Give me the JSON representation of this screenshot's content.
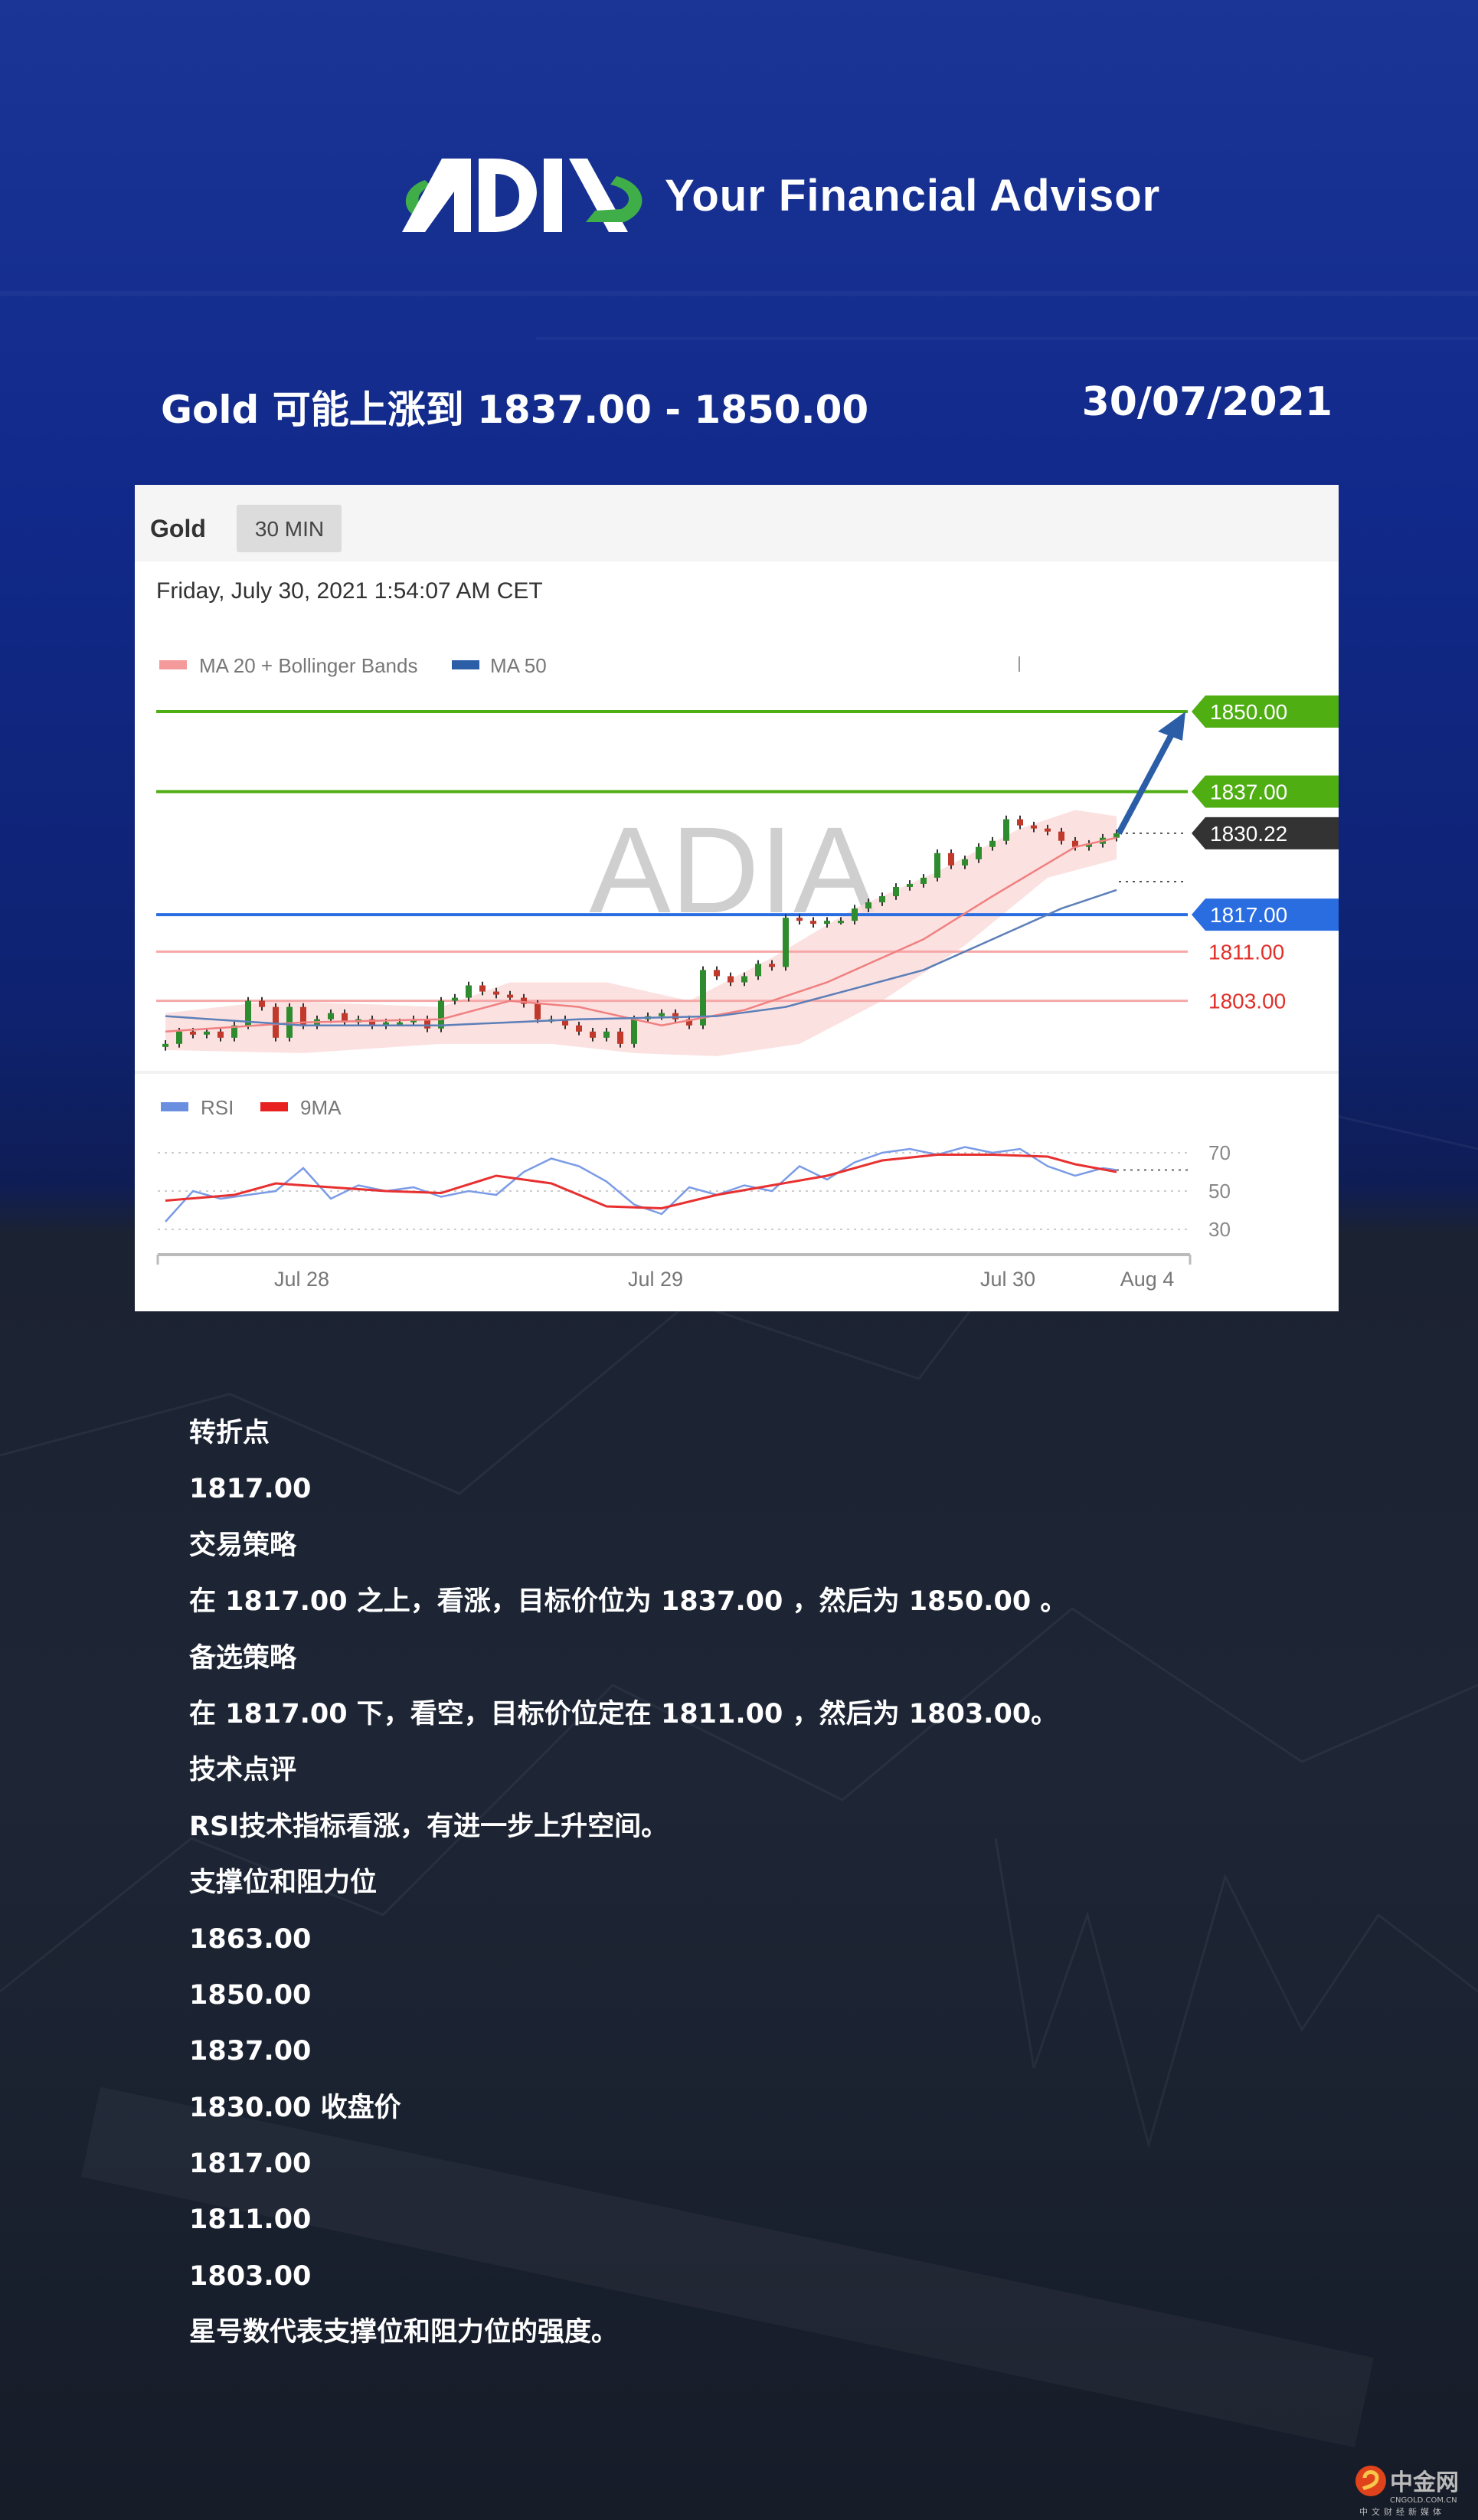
{
  "header": {
    "logo_text": "ADIA",
    "tagline": "Your Financial Advisor",
    "title": "Gold 可能上涨到 1837.00 - 1850.00",
    "date": "30/07/2021"
  },
  "chart_data": {
    "type": "candlestick",
    "symbol": "Gold",
    "timeframe": "30 MIN",
    "timestamp": "Friday, July 30, 2021 1:54:07 AM CET",
    "watermark": "ADIA",
    "legend": [
      {
        "name": "MA 20 + Bollinger Bands",
        "color": "#f08080"
      },
      {
        "name": "MA 50",
        "color": "#2b5ea7"
      }
    ],
    "ylim": [
      1793,
      1852
    ],
    "closes": [
      1796,
      1798,
      1797.5,
      1798,
      1797,
      1799,
      1803,
      1802,
      1797,
      1802,
      1799,
      1800,
      1801,
      1799.5,
      1800,
      1799,
      1799.5,
      1799.5,
      1800,
      1798.5,
      1803,
      1803.5,
      1805.5,
      1804.5,
      1804,
      1803.5,
      1802.5,
      1800,
      1800,
      1799,
      1798,
      1797,
      1798,
      1796,
      1800,
      1800.5,
      1801,
      1800,
      1799,
      1808,
      1807,
      1806,
      1807,
      1809,
      1808.5,
      1816.5,
      1816,
      1815.5,
      1816,
      1816,
      1818,
      1819,
      1820,
      1821.5,
      1822,
      1823,
      1827,
      1825,
      1826,
      1828,
      1829,
      1832.5,
      1831.5,
      1831,
      1830.5,
      1829,
      1828,
      1828.5,
      1829.5,
      1830.22
    ],
    "ma20": [
      [
        0,
        1798
      ],
      [
        10,
        1799.5
      ],
      [
        20,
        1800
      ],
      [
        25,
        1803
      ],
      [
        30,
        1802
      ],
      [
        36,
        1799
      ],
      [
        42,
        1801.5
      ],
      [
        48,
        1806
      ],
      [
        55,
        1813
      ],
      [
        60,
        1820
      ],
      [
        66,
        1828
      ],
      [
        69,
        1829.5
      ]
    ],
    "ma50": [
      [
        0,
        1800.5
      ],
      [
        10,
        1799
      ],
      [
        20,
        1799
      ],
      [
        30,
        1800
      ],
      [
        40,
        1800.5
      ],
      [
        45,
        1802
      ],
      [
        50,
        1805
      ],
      [
        55,
        1808
      ],
      [
        60,
        1813
      ],
      [
        65,
        1818
      ],
      [
        69,
        1821
      ]
    ],
    "bb_upper": [
      [
        0,
        1801
      ],
      [
        8,
        1803
      ],
      [
        20,
        1802
      ],
      [
        25,
        1806
      ],
      [
        32,
        1806
      ],
      [
        38,
        1803
      ],
      [
        44,
        1810
      ],
      [
        50,
        1818
      ],
      [
        56,
        1824
      ],
      [
        62,
        1831
      ],
      [
        66,
        1834
      ],
      [
        69,
        1833
      ]
    ],
    "bb_lower": [
      [
        0,
        1795
      ],
      [
        10,
        1794.5
      ],
      [
        20,
        1796
      ],
      [
        28,
        1796
      ],
      [
        34,
        1794.5
      ],
      [
        40,
        1794
      ],
      [
        46,
        1796
      ],
      [
        52,
        1803
      ],
      [
        58,
        1812
      ],
      [
        64,
        1823
      ],
      [
        69,
        1826
      ]
    ],
    "levels": [
      {
        "value": 1850.0,
        "label": "1850.00",
        "kind": "resistance",
        "color": "#4fae12"
      },
      {
        "value": 1837.0,
        "label": "1837.00",
        "kind": "resistance",
        "color": "#4fae12"
      },
      {
        "value": 1830.22,
        "label": "1830.22",
        "kind": "current",
        "color": "#333333"
      },
      {
        "value": 1817.0,
        "label": "1817.00",
        "kind": "pivot",
        "color": "#2a6de0"
      },
      {
        "value": 1811.0,
        "label": "1811.00",
        "kind": "support",
        "color": "#e0302a"
      },
      {
        "value": 1803.0,
        "label": "1803.00",
        "kind": "support",
        "color": "#e0302a"
      }
    ],
    "rsi_legend": [
      {
        "name": "RSI",
        "color": "#6b8fe0"
      },
      {
        "name": "9MA",
        "color": "#e82020"
      }
    ],
    "rsi_ticks": [
      "70",
      "50",
      "30"
    ],
    "rsi": [
      [
        0,
        34
      ],
      [
        2,
        50
      ],
      [
        4,
        46
      ],
      [
        6,
        48
      ],
      [
        8,
        50
      ],
      [
        10,
        62
      ],
      [
        12,
        46
      ],
      [
        14,
        53
      ],
      [
        16,
        50
      ],
      [
        18,
        52
      ],
      [
        20,
        47
      ],
      [
        22,
        50
      ],
      [
        24,
        48
      ],
      [
        26,
        60
      ],
      [
        28,
        67
      ],
      [
        30,
        63
      ],
      [
        32,
        55
      ],
      [
        34,
        43
      ],
      [
        36,
        38
      ],
      [
        38,
        52
      ],
      [
        40,
        48
      ],
      [
        42,
        53
      ],
      [
        44,
        50
      ],
      [
        46,
        63
      ],
      [
        48,
        56
      ],
      [
        50,
        65
      ],
      [
        52,
        70
      ],
      [
        54,
        72
      ],
      [
        56,
        69
      ],
      [
        58,
        73
      ],
      [
        60,
        70
      ],
      [
        62,
        72
      ],
      [
        64,
        63
      ],
      [
        66,
        58
      ],
      [
        68,
        62
      ],
      [
        69,
        61
      ]
    ],
    "rsi_ma": [
      [
        0,
        45
      ],
      [
        5,
        48
      ],
      [
        8,
        54
      ],
      [
        12,
        52
      ],
      [
        16,
        50
      ],
      [
        20,
        49
      ],
      [
        24,
        58
      ],
      [
        28,
        54
      ],
      [
        32,
        42
      ],
      [
        36,
        41
      ],
      [
        40,
        48
      ],
      [
        44,
        53
      ],
      [
        48,
        58
      ],
      [
        52,
        66
      ],
      [
        56,
        69
      ],
      [
        60,
        69
      ],
      [
        64,
        68
      ],
      [
        66,
        64
      ],
      [
        69,
        60
      ]
    ],
    "x_ticks": [
      "Jul 28",
      "Jul 29",
      "Jul 30",
      "Aug 4"
    ]
  },
  "notes": {
    "items": [
      "转折点",
      "1817.00",
      "交易策略",
      "在 1817.00 之上，看涨，目标价位为 1837.00 ，然后为 1850.00 。",
      "备选策略",
      "在 1817.00 下，看空，目标价位定在 1811.00 ，然后为 1803.00。",
      "技术点评",
      "RSI技术指标看涨，有进一步上升空间。",
      "支撑位和阻力位",
      "1863.00",
      "1850.00",
      "1837.00",
      "1830.00 收盘价",
      "1817.00",
      "1811.00",
      "1803.00",
      "星号数代表支撑位和阻力位的强度。"
    ]
  },
  "watermark_logo": {
    "name": "中金网",
    "domain": "CNGOLD.COM.CN",
    "slogan": "中文财经新媒体"
  },
  "colors": {
    "accent_green": "#4fae12",
    "accent_blue": "#2a6de0",
    "bg_top": "#11298a",
    "bg_bottom": "#1e2636"
  }
}
